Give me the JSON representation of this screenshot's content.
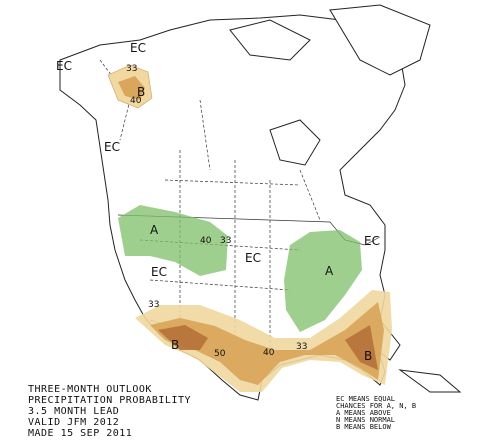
{
  "map": {
    "labels": [
      "EC",
      "EC",
      "33",
      "B",
      "40",
      "EC",
      "A",
      "40",
      "33",
      "EC",
      "EC",
      "EC",
      "A",
      "33",
      "B",
      "50",
      "40",
      "33",
      "B"
    ],
    "title_lines": [
      "THREE-MONTH OUTLOOK",
      "PRECIPITATION PROBABILITY",
      "3.5 MONTH LEAD",
      "VALID JFM 2012",
      "MADE 15 SEP 2011"
    ],
    "legend_lines": [
      "EC MEANS EQUAL",
      "CHANCES FOR A, N, B",
      "A MEANS ABOVE",
      "N MEANS NORMAL",
      "B MEANS BELOW"
    ]
  }
}
